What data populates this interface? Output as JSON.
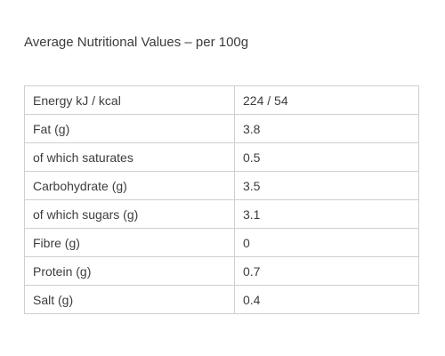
{
  "heading": "Average Nutritional Values – per 100g",
  "rows": [
    {
      "label": "Energy kJ / kcal",
      "value": "224 / 54"
    },
    {
      "label": "Fat (g)",
      "value": "3.8"
    },
    {
      "label": "of which saturates",
      "value": "0.5"
    },
    {
      "label": "Carbohydrate (g)",
      "value": "3.5"
    },
    {
      "label": "of which sugars (g)",
      "value": "3.1"
    },
    {
      "label": "Fibre (g)",
      "value": "0"
    },
    {
      "label": "Protein (g)",
      "value": "0.7"
    },
    {
      "label": "Salt (g)",
      "value": "0.4"
    }
  ]
}
